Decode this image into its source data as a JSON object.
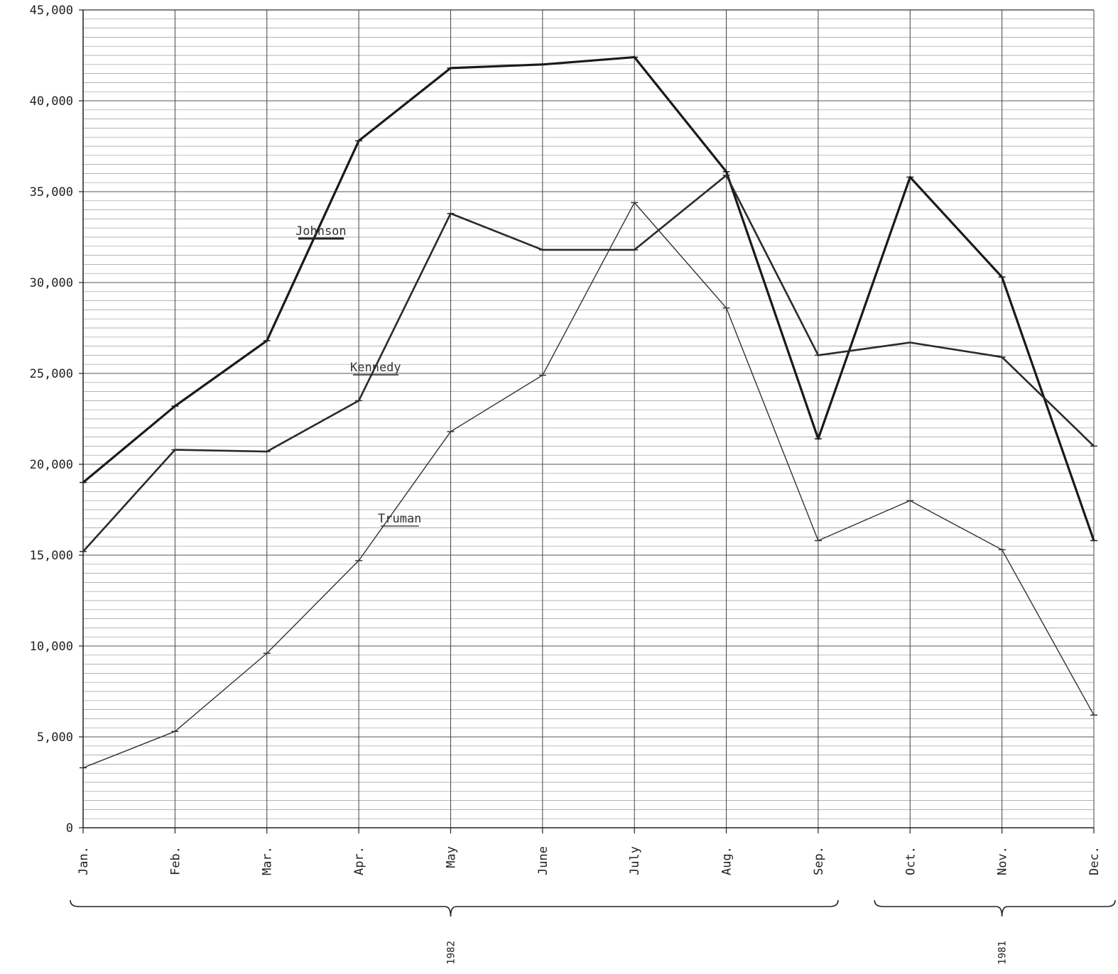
{
  "chart_data": {
    "type": "line",
    "title": "",
    "xlabel": "",
    "ylabel": "",
    "ylim": [
      0,
      45000
    ],
    "y_ticks": [
      "0",
      "5,000",
      "10,000",
      "15,000",
      "20,000",
      "25,000",
      "30,000",
      "35,000",
      "40,000",
      "45,000"
    ],
    "categories": [
      "Jan.",
      "Feb.",
      "Mar.",
      "Apr.",
      "May",
      "June",
      "July",
      "Aug.",
      "Sep.",
      "Oct.",
      "Nov.",
      "Dec."
    ],
    "year_groups": [
      {
        "label": "1982",
        "from": "Jan.",
        "to": "Sep."
      },
      {
        "label": "1981",
        "from": "Oct.",
        "to": "Dec."
      }
    ],
    "grid": true,
    "legend": "inline labels",
    "series": [
      {
        "name": "Johnson",
        "values": [
          19000,
          23200,
          26800,
          37800,
          41800,
          42000,
          42400,
          36100,
          21400,
          35800,
          30300,
          15800
        ]
      },
      {
        "name": "Kennedy",
        "values": [
          15200,
          20800,
          20700,
          23500,
          33800,
          31800,
          31800,
          35900,
          26000,
          26700,
          25900,
          21000
        ]
      },
      {
        "name": "Truman",
        "values": [
          3300,
          5300,
          9600,
          14700,
          21800,
          24900,
          34400,
          28600,
          15800,
          18000,
          15300,
          6200
        ]
      }
    ]
  }
}
